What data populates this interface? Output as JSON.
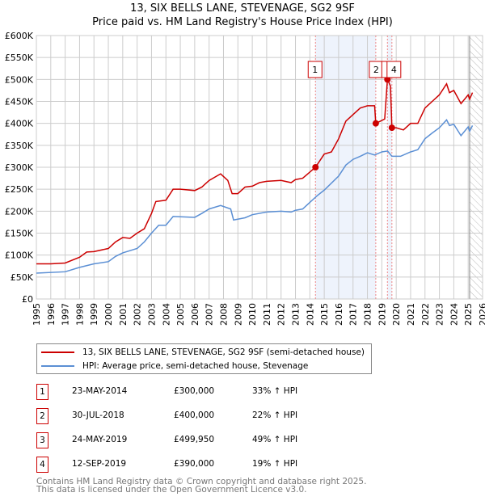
{
  "title_line1": "13, SIX BELLS LANE, STEVENAGE, SG2 9SF",
  "title_line2": "Price paid vs. HM Land Registry's House Price Index (HPI)",
  "chart_data": {
    "type": "line",
    "title": "13, SIX BELLS LANE, STEVENAGE, SG2 9SF — Price paid vs. HM Land Registry's House Price Index (HPI)",
    "xlim": [
      1995,
      2026
    ],
    "ylim": [
      0,
      600000
    ],
    "x_ticks": [
      "1995",
      "1996",
      "1997",
      "1998",
      "1999",
      "2000",
      "2001",
      "2002",
      "2003",
      "2004",
      "2005",
      "2006",
      "2007",
      "2008",
      "2009",
      "2010",
      "2011",
      "2012",
      "2013",
      "2014",
      "2015",
      "2016",
      "2017",
      "2018",
      "2019",
      "2020",
      "2021",
      "2022",
      "2023",
      "2024",
      "2025",
      "2026"
    ],
    "y_ticks": [
      "£0",
      "£50K",
      "£100K",
      "£150K",
      "£200K",
      "£250K",
      "£300K",
      "£350K",
      "£400K",
      "£450K",
      "£500K",
      "£550K",
      "£600K"
    ],
    "grid": true,
    "shaded_ranges": [
      [
        2014.39,
        2018.58
      ],
      [
        2019.39,
        2019.7
      ]
    ],
    "forecast_hatch_from": 2025.1,
    "series": [
      {
        "name": "13, SIX BELLS LANE, STEVENAGE, SG2 9SF (semi-detached house)",
        "color": "#cc0000",
        "x": [
          1995,
          1996,
          1997,
          1998,
          1998.5,
          1999,
          2000,
          2000.5,
          2001,
          2001.5,
          2002,
          2002.5,
          2003,
          2003.3,
          2004,
          2004.5,
          2005,
          2006,
          2006.5,
          2007,
          2007.8,
          2008.3,
          2008.6,
          2009,
          2009.5,
          2010,
          2010.5,
          2011,
          2012,
          2012.7,
          2013,
          2013.5,
          2014.39,
          2015,
          2015.5,
          2016,
          2016.5,
          2017,
          2017.5,
          2018,
          2018.5,
          2018.58,
          2018.9,
          2019.2,
          2019.39,
          2019.6,
          2019.7,
          2020,
          2020.5,
          2021,
          2021.5,
          2022,
          2022.5,
          2023,
          2023.5,
          2023.7,
          2024,
          2024.5,
          2025,
          2025.1,
          2025.3
        ],
        "values": [
          80000,
          80000,
          82000,
          95000,
          107000,
          108000,
          115000,
          130000,
          140000,
          138000,
          150000,
          160000,
          195000,
          222000,
          225000,
          250000,
          250000,
          247000,
          255000,
          270000,
          285000,
          270000,
          240000,
          240000,
          255000,
          257000,
          265000,
          268000,
          270000,
          265000,
          272000,
          275000,
          300000,
          330000,
          335000,
          365000,
          405000,
          420000,
          435000,
          440000,
          440000,
          400000,
          405000,
          410000,
          499950,
          485000,
          390000,
          390000,
          385000,
          400000,
          400000,
          435000,
          450000,
          465000,
          490000,
          470000,
          475000,
          445000,
          465000,
          455000,
          470000
        ]
      },
      {
        "name": "HPI: Average price, semi-detached house, Stevenage",
        "color": "#5b8fd4",
        "x": [
          1995,
          1997,
          1998,
          1999,
          2000,
          2000.5,
          2001,
          2002,
          2002.5,
          2003,
          2003.5,
          2004,
          2004.5,
          2006,
          2006.5,
          2007,
          2007.8,
          2008.5,
          2008.7,
          2009.5,
          2010,
          2011,
          2012,
          2012.7,
          2013,
          2013.5,
          2014,
          2014.5,
          2015,
          2016,
          2016.5,
          2017,
          2017.5,
          2018,
          2018.5,
          2019,
          2019.4,
          2019.7,
          2020.3,
          2021,
          2021.5,
          2022,
          2022.5,
          2023,
          2023.5,
          2023.7,
          2024,
          2024.5,
          2025,
          2025.1,
          2025.3
        ],
        "values": [
          59000,
          62000,
          72000,
          80000,
          85000,
          97000,
          105000,
          115000,
          130000,
          150000,
          168000,
          168000,
          188000,
          186000,
          195000,
          205000,
          213000,
          205000,
          180000,
          185000,
          192000,
          198000,
          200000,
          198000,
          202000,
          205000,
          220000,
          235000,
          248000,
          280000,
          305000,
          318000,
          325000,
          333000,
          328000,
          335000,
          337000,
          325000,
          325000,
          335000,
          340000,
          365000,
          378000,
          390000,
          408000,
          395000,
          398000,
          372000,
          392000,
          382000,
          395000
        ]
      }
    ],
    "transactions": [
      {
        "num": "1",
        "x": 2014.39,
        "value": 300000
      },
      {
        "num": "2",
        "x": 2018.58,
        "value": 400000
      },
      {
        "num": "3",
        "x": 2019.39,
        "value": 499950
      },
      {
        "num": "4",
        "x": 2019.7,
        "value": 390000
      }
    ]
  },
  "legend": {
    "property": "13, SIX BELLS LANE, STEVENAGE, SG2 9SF (semi-detached house)",
    "hpi": "HPI: Average price, semi-detached house, Stevenage"
  },
  "table": [
    {
      "num": "1",
      "date": "23-MAY-2014",
      "price": "£300,000",
      "hpi": "33% ↑ HPI"
    },
    {
      "num": "2",
      "date": "30-JUL-2018",
      "price": "£400,000",
      "hpi": "22% ↑ HPI"
    },
    {
      "num": "3",
      "date": "24-MAY-2019",
      "price": "£499,950",
      "hpi": "49% ↑ HPI"
    },
    {
      "num": "4",
      "date": "12-SEP-2019",
      "price": "£390,000",
      "hpi": "19% ↑ HPI"
    }
  ],
  "footer_line1": "Contains HM Land Registry data © Crown copyright and database right 2025.",
  "footer_line2": "This data is licensed under the Open Government Licence v3.0."
}
